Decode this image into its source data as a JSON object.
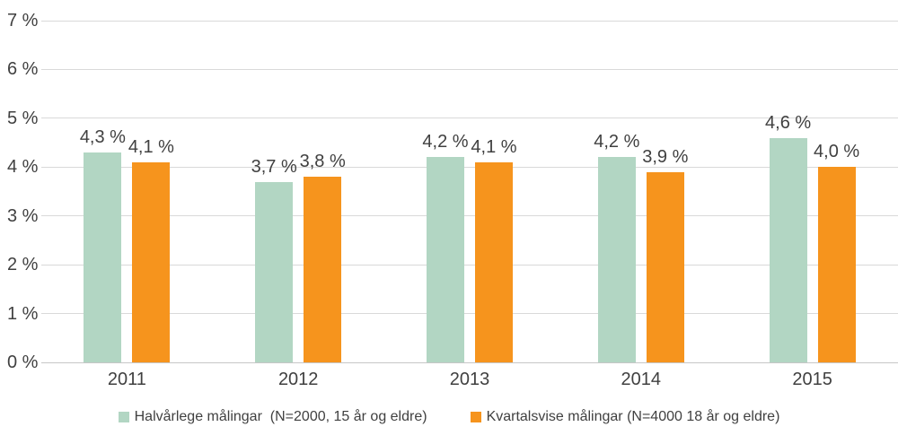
{
  "chart_data": {
    "type": "bar",
    "title": "",
    "xlabel": "",
    "ylabel": "",
    "categories": [
      "2011",
      "2012",
      "2013",
      "2014",
      "2015"
    ],
    "series": [
      {
        "name": "Halvårlege målingar  (N=2000, 15 år og eldre)",
        "color": "#b2d6c3",
        "values": [
          4.3,
          3.7,
          4.2,
          4.2,
          4.6
        ],
        "labels": [
          "4,3 %",
          "3,7 %",
          "4,2 %",
          "4,2 %",
          "4,6 %"
        ]
      },
      {
        "name": "Kvartalsvise målingar (N=4000 18 år og eldre)",
        "color": "#f6941d",
        "values": [
          4.1,
          3.8,
          4.1,
          3.9,
          4.0
        ],
        "labels": [
          "4,1 %",
          "3,8 %",
          "4,1 %",
          "3,9 %",
          "4,0 %"
        ]
      }
    ],
    "y_axis": {
      "min": 0,
      "max": 7,
      "ticks": [
        {
          "value": 0,
          "label": "0 %"
        },
        {
          "value": 1,
          "label": "1 %"
        },
        {
          "value": 2,
          "label": "2 %"
        },
        {
          "value": 3,
          "label": "3 %"
        },
        {
          "value": 4,
          "label": "4 %"
        },
        {
          "value": 5,
          "label": "5 %"
        },
        {
          "value": 6,
          "label": "6 %"
        },
        {
          "value": 7,
          "label": "7 %"
        }
      ]
    },
    "grid": true,
    "legend_position": "bottom",
    "colors": {
      "gridline": "#d9d9d9",
      "baseline": "#c6c6c6",
      "text": "#404040",
      "background": "#ffffff"
    }
  }
}
